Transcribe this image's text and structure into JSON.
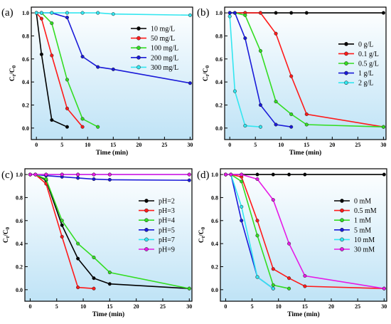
{
  "chart_data": [
    {
      "panel": "(a)",
      "type": "line",
      "xlabel": "Time (min)",
      "ylabel": "Ct/C0",
      "xlim": [
        -1,
        30.5
      ],
      "ylim": [
        -0.1,
        1.05
      ],
      "xticks": [
        "0",
        "5",
        "10",
        "15",
        "20",
        "25",
        "30"
      ],
      "yticks": [
        "0.0",
        "0.2",
        "0.4",
        "0.6",
        "0.8",
        "1.0"
      ],
      "legend_position": "top-right",
      "series": [
        {
          "name": "10 mg/L",
          "color": "#000000",
          "x": [
            0,
            1,
            3,
            6
          ],
          "y": [
            1.0,
            0.64,
            0.07,
            0.01
          ]
        },
        {
          "name": "50 mg/L",
          "color": "#ff1a1a",
          "x": [
            0,
            1,
            3,
            6,
            9
          ],
          "y": [
            1.0,
            0.95,
            0.63,
            0.17,
            0.01
          ]
        },
        {
          "name": "100 mg/L",
          "color": "#33dd22",
          "x": [
            0,
            1,
            3,
            6,
            9,
            12
          ],
          "y": [
            1.0,
            1.0,
            0.91,
            0.42,
            0.08,
            0.01
          ]
        },
        {
          "name": "200 mg/L",
          "color": "#1a1ad8",
          "x": [
            0,
            1,
            3,
            6,
            9,
            12,
            15,
            30
          ],
          "y": [
            1.0,
            1.0,
            1.0,
            0.96,
            0.62,
            0.53,
            0.51,
            0.39
          ]
        },
        {
          "name": "300 mg/L",
          "color": "#33e6f0",
          "x": [
            0,
            1,
            3,
            6,
            9,
            12,
            15,
            30
          ],
          "y": [
            1.0,
            1.0,
            1.0,
            1.0,
            1.0,
            1.0,
            0.99,
            0.98
          ]
        }
      ]
    },
    {
      "panel": "(b)",
      "type": "line",
      "xlabel": "Time (min)",
      "ylabel": "Ct/C0",
      "xlim": [
        -1,
        30.5
      ],
      "ylim": [
        -0.1,
        1.05
      ],
      "xticks": [
        "0",
        "5",
        "10",
        "15",
        "20",
        "25",
        "30"
      ],
      "yticks": [
        "0.0",
        "0.2",
        "0.4",
        "0.6",
        "0.8",
        "1.0"
      ],
      "legend_position": "right",
      "series": [
        {
          "name": "0 g/L",
          "color": "#000000",
          "x": [
            0,
            1,
            3,
            6,
            9,
            12,
            15,
            30
          ],
          "y": [
            1.0,
            1.0,
            1.0,
            1.0,
            1.0,
            1.0,
            1.0,
            1.0
          ]
        },
        {
          "name": "0.1 g/L",
          "color": "#ff1a1a",
          "x": [
            0,
            1,
            3,
            6,
            9,
            12,
            15,
            30
          ],
          "y": [
            1.0,
            1.0,
            1.0,
            1.0,
            0.82,
            0.45,
            0.12,
            0.01
          ]
        },
        {
          "name": "0.5 g/L",
          "color": "#33dd22",
          "x": [
            0,
            1,
            3,
            6,
            9,
            12,
            15,
            30
          ],
          "y": [
            1.0,
            1.0,
            0.98,
            0.67,
            0.23,
            0.12,
            0.03,
            0.01
          ]
        },
        {
          "name": "1 g/L",
          "color": "#1a1ad8",
          "x": [
            0,
            1,
            3,
            6,
            9,
            12
          ],
          "y": [
            1.0,
            1.0,
            0.78,
            0.2,
            0.03,
            0.01
          ]
        },
        {
          "name": "2 g/L",
          "color": "#33e6f0",
          "x": [
            0,
            1,
            3,
            6
          ],
          "y": [
            0.97,
            0.32,
            0.02,
            0.01
          ]
        }
      ]
    },
    {
      "panel": "(c)",
      "type": "line",
      "xlabel": "Time (min)",
      "ylabel": "Ct/C0",
      "xlim": [
        -1,
        30.5
      ],
      "ylim": [
        -0.1,
        1.05
      ],
      "xticks": [
        "0",
        "5",
        "10",
        "15",
        "20",
        "25",
        "30"
      ],
      "yticks": [
        "0.0",
        "0.2",
        "0.4",
        "0.6",
        "0.8",
        "1.0"
      ],
      "legend_position": "right",
      "series": [
        {
          "name": "pH=2",
          "color": "#000000",
          "x": [
            0,
            1,
            3,
            6,
            9,
            12,
            15,
            30
          ],
          "y": [
            1.0,
            1.0,
            0.95,
            0.56,
            0.27,
            0.1,
            0.05,
            0.01
          ]
        },
        {
          "name": "pH=3",
          "color": "#ff1a1a",
          "x": [
            0,
            1,
            3,
            6,
            9,
            12
          ],
          "y": [
            1.0,
            1.0,
            0.92,
            0.46,
            0.02,
            0.01
          ]
        },
        {
          "name": "pH=4",
          "color": "#33dd22",
          "x": [
            0,
            1,
            3,
            6,
            9,
            12,
            15,
            30
          ],
          "y": [
            1.0,
            1.0,
            0.96,
            0.6,
            0.4,
            0.28,
            0.15,
            0.01
          ]
        },
        {
          "name": "pH=5",
          "color": "#1a1ad8",
          "x": [
            0,
            1,
            3,
            6,
            9,
            12,
            15,
            30
          ],
          "y": [
            1.0,
            1.0,
            0.99,
            0.98,
            0.97,
            0.96,
            0.955,
            0.95
          ]
        },
        {
          "name": "pH=7",
          "color": "#33e6f0",
          "x": [
            0,
            1,
            3,
            6,
            9,
            12,
            15,
            30
          ],
          "y": [
            1.0,
            1.0,
            1.0,
            1.0,
            1.0,
            1.0,
            1.0,
            1.0
          ]
        },
        {
          "name": "pH=9",
          "color": "#e61ae6",
          "x": [
            0,
            1,
            3,
            6,
            9,
            12,
            15,
            30
          ],
          "y": [
            1.0,
            1.0,
            1.0,
            1.0,
            1.0,
            1.0,
            1.0,
            1.0
          ]
        }
      ]
    },
    {
      "panel": "(d)",
      "type": "line",
      "xlabel": "Time (min)",
      "ylabel": "Ct/C0",
      "xlim": [
        -1,
        30.5
      ],
      "ylim": [
        -0.1,
        1.05
      ],
      "xticks": [
        "0",
        "5",
        "10",
        "15",
        "20",
        "25",
        "30"
      ],
      "yticks": [
        "0.0",
        "0.2",
        "0.4",
        "0.6",
        "0.8",
        "1.0"
      ],
      "legend_position": "right",
      "series": [
        {
          "name": "0 mM",
          "color": "#000000",
          "x": [
            0,
            1,
            3,
            6,
            9,
            12,
            15,
            30
          ],
          "y": [
            1.0,
            1.0,
            1.0,
            1.0,
            1.0,
            1.0,
            1.0,
            1.0
          ]
        },
        {
          "name": "0.5 mM",
          "color": "#ff1a1a",
          "x": [
            0,
            1,
            3,
            6,
            9,
            12,
            15,
            30
          ],
          "y": [
            1.0,
            1.0,
            0.98,
            0.6,
            0.18,
            0.1,
            0.03,
            0.01
          ]
        },
        {
          "name": "1 mM",
          "color": "#33dd22",
          "x": [
            0,
            1,
            3,
            6,
            9,
            12
          ],
          "y": [
            1.0,
            1.0,
            0.94,
            0.47,
            0.04,
            0.01
          ]
        },
        {
          "name": "5 mM",
          "color": "#1a1ad8",
          "x": [
            0,
            1,
            3,
            6,
            9
          ],
          "y": [
            1.0,
            1.0,
            0.6,
            0.11,
            0.01
          ]
        },
        {
          "name": "10 mM",
          "color": "#33e6f0",
          "x": [
            0,
            1,
            3,
            6,
            9
          ],
          "y": [
            1.0,
            1.0,
            0.72,
            0.11,
            0.01
          ]
        },
        {
          "name": "30 mM",
          "color": "#e61ae6",
          "x": [
            0,
            1,
            3,
            6,
            9,
            12,
            15,
            30
          ],
          "y": [
            1.0,
            1.0,
            1.0,
            0.96,
            0.78,
            0.4,
            0.12,
            0.01
          ]
        }
      ]
    }
  ]
}
